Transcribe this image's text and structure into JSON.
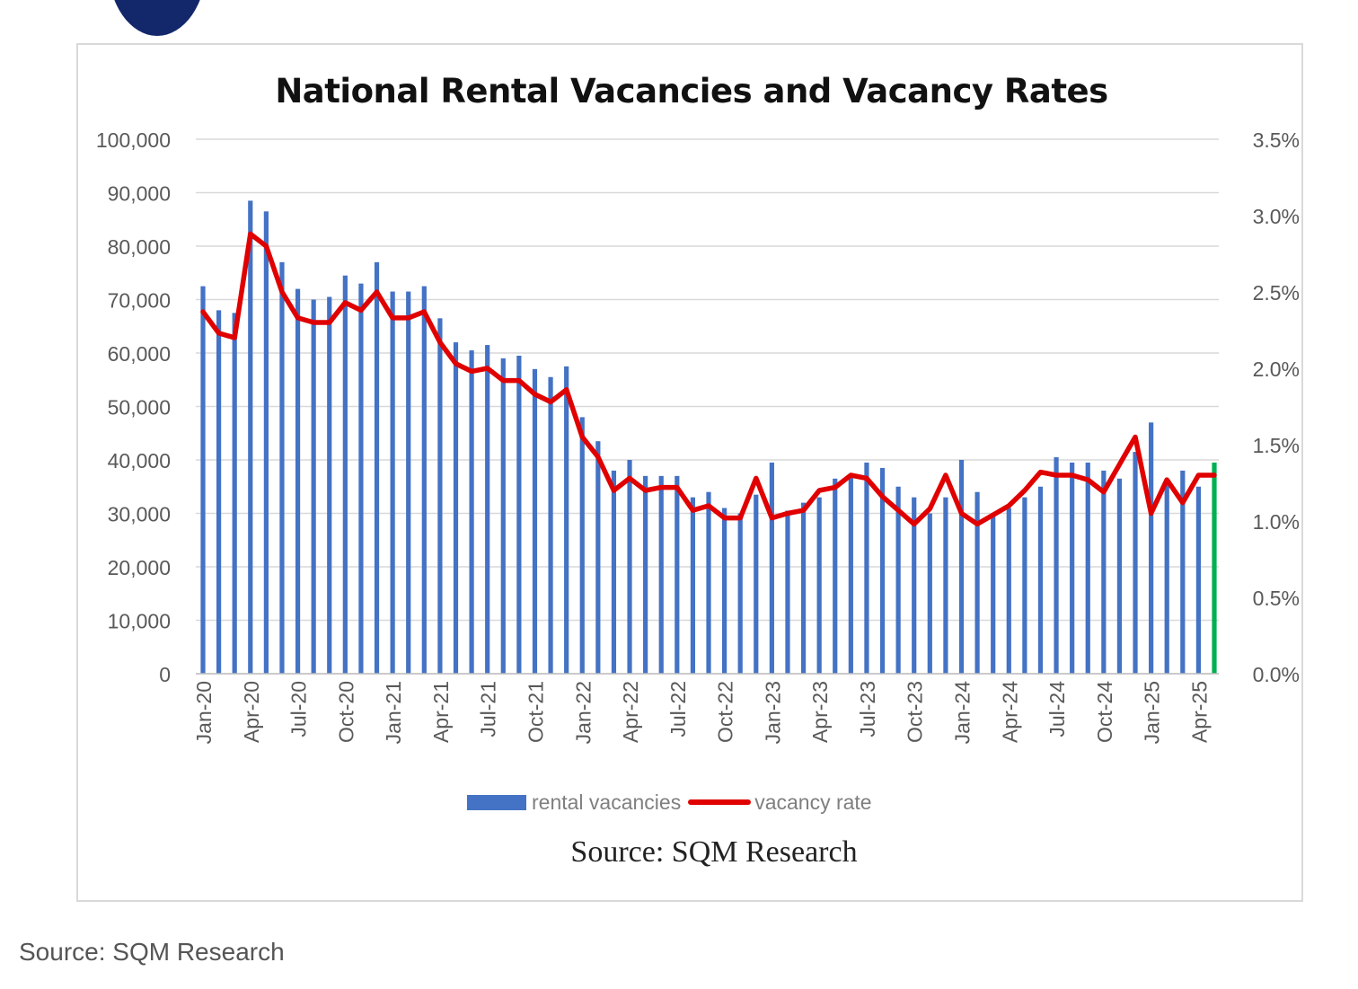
{
  "caption": "Source: SQM Research",
  "chart_data": {
    "type": "bar",
    "title": "National Rental Vacancies and Vacancy Rates",
    "source_note": "Source: SQM Research",
    "left_axis": {
      "range": [
        0,
        100000
      ],
      "ticks": [
        "0",
        "10,000",
        "20,000",
        "30,000",
        "40,000",
        "50,000",
        "60,000",
        "70,000",
        "80,000",
        "90,000",
        "100,000"
      ]
    },
    "right_axis": {
      "range": [
        0,
        3.5
      ],
      "ticks": [
        "0.0%",
        "0.5%",
        "1.0%",
        "1.5%",
        "2.0%",
        "2.5%",
        "3.0%",
        "3.5%"
      ]
    },
    "x_tick_labels": [
      "Jan-20",
      "Apr-20",
      "Jul-20",
      "Oct-20",
      "Jan-21",
      "Apr-21",
      "Jul-21",
      "Oct-21",
      "Jan-22",
      "Apr-22",
      "Jul-22",
      "Oct-22",
      "Jan-23",
      "Apr-23",
      "Jul-23",
      "Oct-23",
      "Jan-24",
      "Apr-24",
      "Jul-24",
      "Oct-24",
      "Jan-25",
      "Apr-25"
    ],
    "grid": true,
    "legend_position": "bottom",
    "series": [
      {
        "name": "rental vacancies",
        "type": "bar",
        "axis": "left",
        "color": "#4472c4",
        "last_bar_color": "#00b050",
        "values": [
          72500,
          68000,
          67500,
          88500,
          86500,
          77000,
          72000,
          70000,
          70500,
          74500,
          73000,
          77000,
          71500,
          71500,
          72500,
          66500,
          62000,
          60500,
          61500,
          59000,
          59500,
          57000,
          55500,
          57500,
          48000,
          43500,
          38000,
          40000,
          37000,
          37000,
          37000,
          33000,
          34000,
          31000,
          30000,
          33500,
          39500,
          30500,
          32000,
          33000,
          36500,
          37000,
          39500,
          38500,
          35000,
          33000,
          30000,
          33000,
          40000,
          34000,
          30000,
          31000,
          33000,
          35000,
          40500,
          39500,
          39500,
          38000,
          36500,
          41500,
          47000,
          36000,
          38000,
          35000,
          39500
        ]
      },
      {
        "name": "vacancy rate",
        "type": "line",
        "axis": "right",
        "color": "#e00000",
        "values": [
          2.37,
          2.23,
          2.2,
          2.88,
          2.8,
          2.5,
          2.33,
          2.3,
          2.3,
          2.43,
          2.38,
          2.5,
          2.33,
          2.33,
          2.37,
          2.17,
          2.03,
          1.98,
          2.0,
          1.92,
          1.92,
          1.83,
          1.78,
          1.86,
          1.55,
          1.42,
          1.2,
          1.28,
          1.2,
          1.22,
          1.22,
          1.07,
          1.1,
          1.02,
          1.02,
          1.28,
          1.02,
          1.05,
          1.07,
          1.2,
          1.22,
          1.3,
          1.28,
          1.16,
          1.07,
          0.98,
          1.08,
          1.3,
          1.05,
          0.98,
          1.04,
          1.1,
          1.2,
          1.32,
          1.3,
          1.3,
          1.27,
          1.19,
          1.37,
          1.55,
          1.05,
          1.27,
          1.12,
          1.3,
          1.3
        ]
      }
    ]
  }
}
